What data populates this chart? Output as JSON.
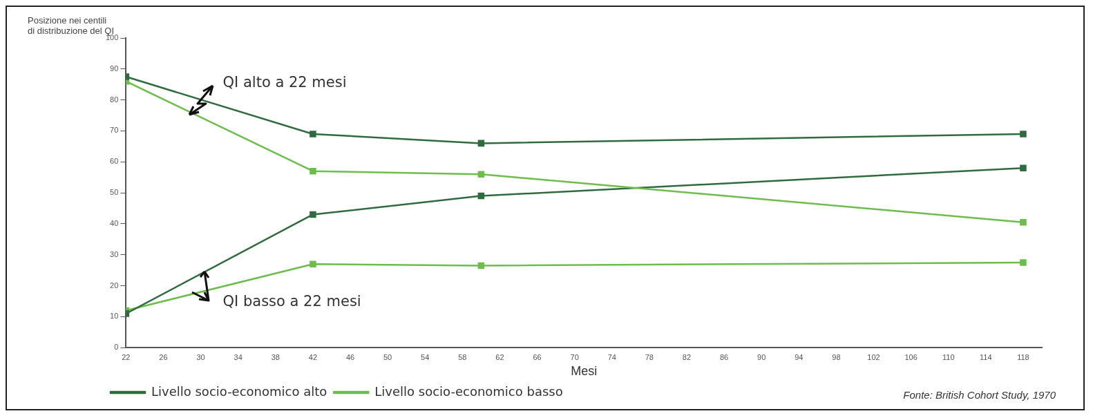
{
  "chart_data": {
    "type": "line",
    "ylabel": "Posizione nei centili\ndi distribuzione del QI",
    "xlabel": "Mesi",
    "x": [
      22,
      42,
      60,
      118
    ],
    "series": [
      {
        "name": "Livello socio-economico alto",
        "color": "#2f6b3f",
        "values": [
          87.5,
          69,
          66,
          69
        ]
      },
      {
        "name": "Livello socio-economico basso",
        "color": "#6cbd4c",
        "values": [
          86,
          57,
          56,
          40.5
        ]
      },
      {
        "color": "#2f6b3f",
        "values": [
          11,
          43,
          49,
          58
        ]
      },
      {
        "color": "#6cbd4c",
        "values": [
          12,
          27,
          26.5,
          27.5
        ]
      }
    ],
    "xlim": [
      22,
      120
    ],
    "xticks": [
      22,
      26,
      30,
      34,
      38,
      42,
      46,
      50,
      54,
      58,
      62,
      66,
      70,
      74,
      78,
      82,
      86,
      90,
      94,
      98,
      102,
      106,
      110,
      114,
      118
    ],
    "ylim": [
      0,
      100
    ],
    "yticks": [
      0,
      10,
      20,
      30,
      40,
      50,
      60,
      70,
      80,
      90,
      100
    ],
    "grid": false,
    "legend": "bottom left",
    "marker": "square",
    "line_style": "solid",
    "annotations": [
      {
        "text": "QI alto a 22 mesi",
        "x": 30,
        "y": 80
      },
      {
        "text": "QI basso a 22 mesi",
        "x": 30,
        "y": 20
      },
      "Fonte: British Cohort Study, 1970"
    ]
  }
}
